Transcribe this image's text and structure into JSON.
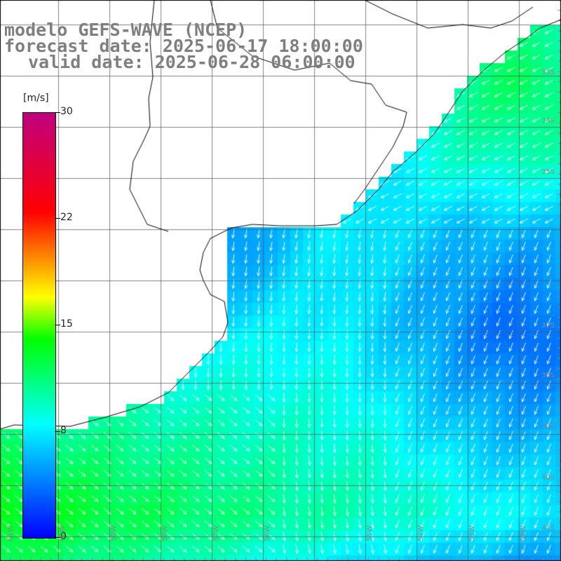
{
  "header": {
    "line1": "modelo GEFS-WAVE (NCEP)",
    "line2": "forecast date: 2025-06-17 18:00:00",
    "line3": "valid date: 2025-06-28 06:00:00"
  },
  "colorbar": {
    "units": "[m/s]",
    "ticks": [
      {
        "label": "30",
        "value": 30
      },
      {
        "label": "22",
        "value": 22
      },
      {
        "label": "15",
        "value": 15
      },
      {
        "label": "8",
        "value": 8
      },
      {
        "label": "0",
        "value": 0
      }
    ],
    "range": [
      0,
      30
    ],
    "colors": [
      "#0000ff",
      "#00ffff",
      "#00ff00",
      "#ffff00",
      "#ff0000",
      "#c00080"
    ]
  },
  "map": {
    "region": "South America, Río de la Plata",
    "lat_labels": [
      "33S",
      "34S",
      "35S",
      "37S",
      "38S",
      "39S",
      "40S",
      "41S"
    ],
    "lon_labels": [
      "61W",
      "60W",
      "59W",
      "58W",
      "57W",
      "56W",
      "55W",
      "54W",
      "53W",
      "52W"
    ],
    "grid_lines": true,
    "field": "wind speed with direction arrows"
  },
  "colors": {
    "title": "#7f7f7f",
    "land": "#ffffff",
    "coast": "#000000",
    "grid": "#666666",
    "arrow": "#ffffff"
  }
}
